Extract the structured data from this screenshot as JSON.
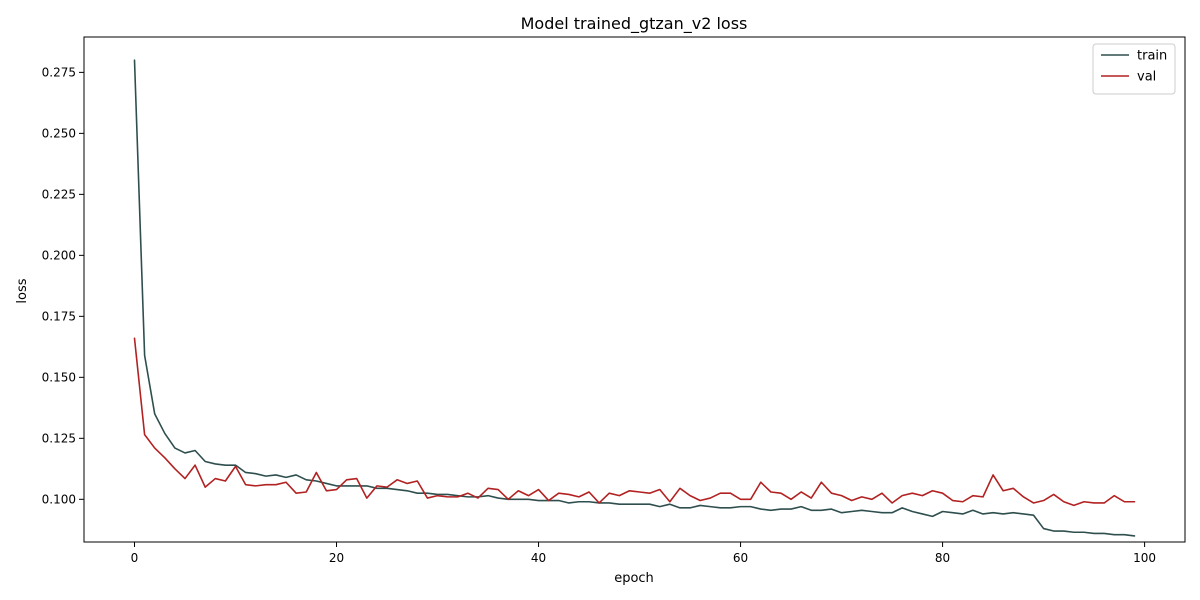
{
  "chart_data": {
    "type": "line",
    "title": "Model trained_gtzan_v2 loss",
    "xlabel": "epoch",
    "ylabel": "loss",
    "xlim": [
      -5,
      104
    ],
    "ylim": [
      0.0825,
      0.2895
    ],
    "xticks": [
      0,
      20,
      40,
      60,
      80,
      100
    ],
    "yticks": [
      0.1,
      0.125,
      0.15,
      0.175,
      0.2,
      0.225,
      0.25,
      0.275
    ],
    "grid": false,
    "legend_position": "top-right",
    "series": [
      {
        "name": "train",
        "color": "#2f4f4f",
        "x": [
          0,
          1,
          2,
          3,
          4,
          5,
          6,
          7,
          8,
          9,
          10,
          11,
          12,
          13,
          14,
          15,
          16,
          17,
          18,
          19,
          20,
          21,
          22,
          23,
          24,
          25,
          26,
          27,
          28,
          29,
          30,
          31,
          32,
          33,
          34,
          35,
          36,
          37,
          38,
          39,
          40,
          41,
          42,
          43,
          44,
          45,
          46,
          47,
          48,
          49,
          50,
          51,
          52,
          53,
          54,
          55,
          56,
          57,
          58,
          59,
          60,
          61,
          62,
          63,
          64,
          65,
          66,
          67,
          68,
          69,
          70,
          71,
          72,
          73,
          74,
          75,
          76,
          77,
          78,
          79,
          80,
          81,
          82,
          83,
          84,
          85,
          86,
          87,
          88,
          89,
          90,
          91,
          92,
          93,
          94,
          95,
          96,
          97,
          98,
          99
        ],
        "y": [
          0.28,
          0.159,
          0.135,
          0.127,
          0.121,
          0.119,
          0.12,
          0.1155,
          0.1145,
          0.114,
          0.114,
          0.111,
          0.1105,
          0.1095,
          0.11,
          0.109,
          0.11,
          0.108,
          0.1075,
          0.1065,
          0.1055,
          0.1055,
          0.1055,
          0.1055,
          0.1045,
          0.1045,
          0.104,
          0.1035,
          0.1025,
          0.1025,
          0.102,
          0.102,
          0.1015,
          0.101,
          0.101,
          0.1015,
          0.1005,
          0.1,
          0.1,
          0.1,
          0.0995,
          0.0995,
          0.0995,
          0.0985,
          0.099,
          0.099,
          0.0985,
          0.0985,
          0.098,
          0.098,
          0.098,
          0.098,
          0.097,
          0.098,
          0.0965,
          0.0965,
          0.0975,
          0.097,
          0.0965,
          0.0965,
          0.097,
          0.097,
          0.096,
          0.0955,
          0.096,
          0.096,
          0.097,
          0.0955,
          0.0955,
          0.096,
          0.0945,
          0.095,
          0.0955,
          0.095,
          0.0945,
          0.0945,
          0.0965,
          0.095,
          0.094,
          0.093,
          0.095,
          0.0945,
          0.094,
          0.0955,
          0.094,
          0.0945,
          0.094,
          0.0945,
          0.094,
          0.0935,
          0.088,
          0.087,
          0.087,
          0.0865,
          0.0865,
          0.086,
          0.086,
          0.0855,
          0.0855,
          0.085
        ]
      },
      {
        "name": "val",
        "color": "#b22222",
        "x": [
          0,
          1,
          2,
          3,
          4,
          5,
          6,
          7,
          8,
          9,
          10,
          11,
          12,
          13,
          14,
          15,
          16,
          17,
          18,
          19,
          20,
          21,
          22,
          23,
          24,
          25,
          26,
          27,
          28,
          29,
          30,
          31,
          32,
          33,
          34,
          35,
          36,
          37,
          38,
          39,
          40,
          41,
          42,
          43,
          44,
          45,
          46,
          47,
          48,
          49,
          50,
          51,
          52,
          53,
          54,
          55,
          56,
          57,
          58,
          59,
          60,
          61,
          62,
          63,
          64,
          65,
          66,
          67,
          68,
          69,
          70,
          71,
          72,
          73,
          74,
          75,
          76,
          77,
          78,
          79,
          80,
          81,
          82,
          83,
          84,
          85,
          86,
          87,
          88,
          89,
          90,
          91,
          92,
          93,
          94,
          95,
          96,
          97,
          98,
          99
        ],
        "y": [
          0.166,
          0.1265,
          0.121,
          0.117,
          0.1125,
          0.1085,
          0.114,
          0.105,
          0.1085,
          0.1075,
          0.1135,
          0.106,
          0.1055,
          0.106,
          0.106,
          0.107,
          0.1025,
          0.103,
          0.111,
          0.1035,
          0.104,
          0.108,
          0.1085,
          0.1005,
          0.1055,
          0.105,
          0.108,
          0.1065,
          0.1075,
          0.1005,
          0.1015,
          0.101,
          0.101,
          0.1025,
          0.1005,
          0.1045,
          0.104,
          0.1,
          0.1035,
          0.1015,
          0.104,
          0.0995,
          0.1025,
          0.102,
          0.101,
          0.103,
          0.0985,
          0.1025,
          0.1015,
          0.1035,
          0.103,
          0.1025,
          0.104,
          0.099,
          0.1045,
          0.1015,
          0.0995,
          0.1005,
          0.1025,
          0.1025,
          0.1,
          0.1,
          0.107,
          0.103,
          0.1025,
          0.1,
          0.103,
          0.1005,
          0.107,
          0.1025,
          0.1015,
          0.0995,
          0.101,
          0.1,
          0.1025,
          0.0985,
          0.1015,
          0.1025,
          0.1015,
          0.1035,
          0.1025,
          0.0995,
          0.099,
          0.1015,
          0.101,
          0.11,
          0.1035,
          0.1045,
          0.101,
          0.0985,
          0.0995,
          0.102,
          0.099,
          0.0975,
          0.099,
          0.0985,
          0.0985,
          0.1015,
          0.099,
          0.099
        ]
      }
    ]
  }
}
